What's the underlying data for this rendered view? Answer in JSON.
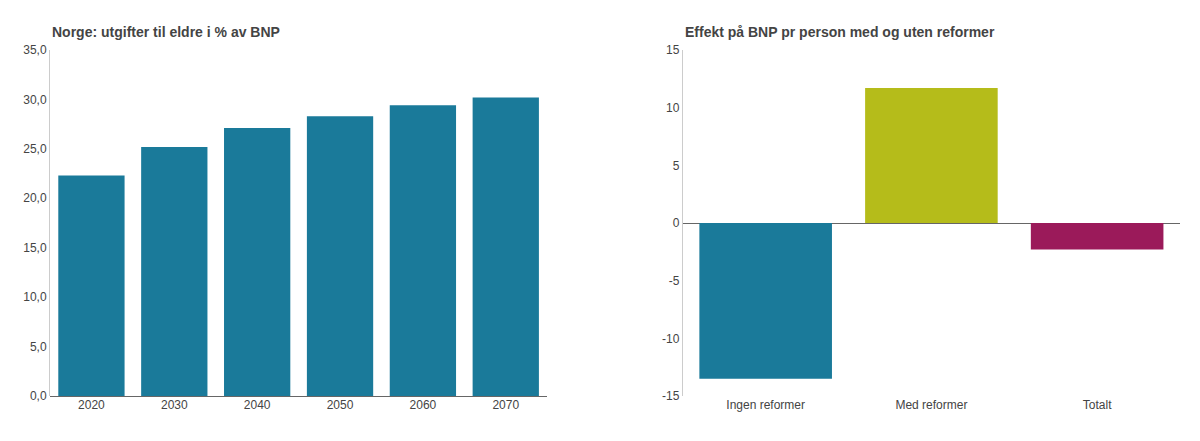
{
  "chart_data": [
    {
      "type": "bar",
      "title": "Norge: utgifter til eldre i % av BNP",
      "categories": [
        "2020",
        "2030",
        "2040",
        "2050",
        "2060",
        "2070"
      ],
      "values": [
        22.3,
        25.2,
        27.1,
        28.3,
        29.4,
        30.2
      ],
      "color": "#1a7a9a",
      "ylim": [
        0,
        35
      ],
      "yticks": [
        {
          "value": 0,
          "label": "0,0"
        },
        {
          "value": 5,
          "label": "5,0"
        },
        {
          "value": 10,
          "label": "10,0"
        },
        {
          "value": 15,
          "label": "15,0"
        },
        {
          "value": 20,
          "label": "20,0"
        },
        {
          "value": 25,
          "label": "25,0"
        },
        {
          "value": 30,
          "label": "30,0"
        },
        {
          "value": 35,
          "label": "35,0"
        }
      ],
      "grid": false
    },
    {
      "type": "bar",
      "title": "Effekt på BNP pr person med og uten reformer",
      "categories": [
        "Ingen reformer",
        "Med reformer",
        "Totalt"
      ],
      "values": [
        -13.5,
        11.7,
        -2.3
      ],
      "colors": [
        "#1a7a9a",
        "#b5bc1a",
        "#9b1a5a"
      ],
      "ylim": [
        -15,
        15
      ],
      "yticks": [
        -15,
        -10,
        -5,
        0,
        5,
        10,
        15
      ],
      "grid": false
    }
  ]
}
